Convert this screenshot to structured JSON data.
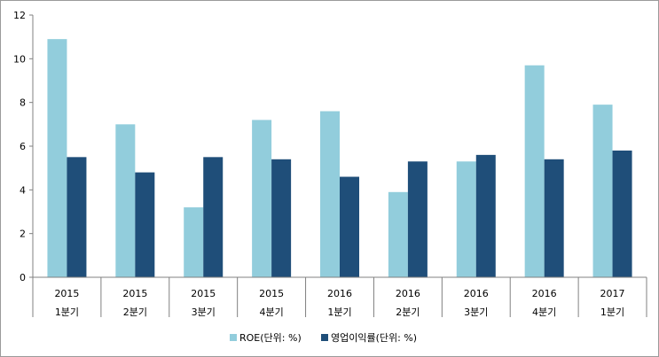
{
  "chart_data": {
    "type": "bar",
    "categories": [
      [
        "2015",
        "1분기"
      ],
      [
        "2015",
        "2분기"
      ],
      [
        "2015",
        "3분기"
      ],
      [
        "2015",
        "4분기"
      ],
      [
        "2016",
        "1분기"
      ],
      [
        "2016",
        "2분기"
      ],
      [
        "2016",
        "3분기"
      ],
      [
        "2016",
        "4분기"
      ],
      [
        "2017",
        "1분기"
      ]
    ],
    "series": [
      {
        "name": "ROE(단위: %)",
        "color": "#92CDDC",
        "values": [
          10.9,
          7.0,
          3.2,
          7.2,
          7.6,
          3.9,
          5.3,
          9.7,
          7.9
        ]
      },
      {
        "name": "영업이익률(단위: %)",
        "color": "#1F4E79",
        "values": [
          5.5,
          4.8,
          5.5,
          5.4,
          4.6,
          5.3,
          5.6,
          5.4,
          5.8
        ]
      }
    ],
    "ylim": [
      0,
      12
    ],
    "yticks": [
      "0",
      "2",
      "4",
      "6",
      "8",
      "10",
      "12"
    ],
    "grid": false,
    "legend_position": "bottom",
    "title": "",
    "xlabel": "",
    "ylabel": ""
  }
}
